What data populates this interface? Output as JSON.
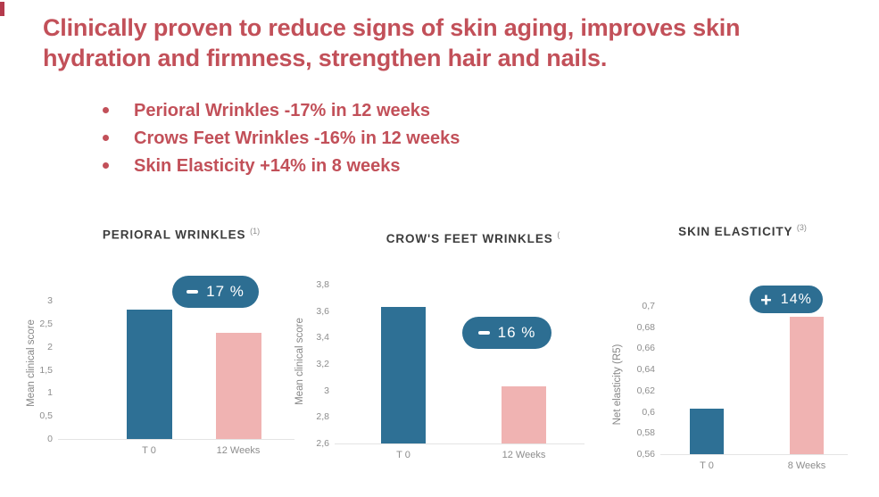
{
  "decor": {
    "corner_mark_color": "#b43a4c"
  },
  "colors": {
    "headline": "#c25059",
    "bar_t0": "#2e7095",
    "bar_followup": "#f0b3b2",
    "badge_bg": "#2d6e92",
    "badge_text": "#ffffff"
  },
  "header": {
    "title": "Clinically proven to reduce signs of skin aging, improves skin hydration and firmness, strengthen hair and nails."
  },
  "bullets": [
    "Perioral Wrinkles -17% in 12 weeks",
    "Crows Feet Wrinkles -16% in 12 weeks",
    "Skin Elasticity +14% in 8 weeks"
  ],
  "chart_data": [
    {
      "type": "bar",
      "title": "PERIORAL WRINKLES",
      "title_superscript": "(1)",
      "ylabel": "Mean clinical score",
      "categories": [
        "T 0",
        "12 Weeks"
      ],
      "values": [
        2.8,
        2.3
      ],
      "ylim": [
        0,
        3
      ],
      "ytick_labels": [
        "0",
        "0,5",
        "1",
        "1,5",
        "2",
        "2,5",
        "3"
      ],
      "badge": {
        "sign": "-",
        "value": "17 %"
      },
      "bar_colors": [
        "#2e7095",
        "#f0b3b2"
      ],
      "grid": false,
      "legend": false
    },
    {
      "type": "bar",
      "title": "CROW'S FEET WRINKLES",
      "title_superscript": "(",
      "ylabel": "Mean clinical score",
      "categories": [
        "T 0",
        "12 Weeks"
      ],
      "values": [
        3.63,
        3.03
      ],
      "ylim": [
        2.6,
        3.8
      ],
      "ytick_labels": [
        "2,6",
        "2,8",
        "3",
        "3,2",
        "3,4",
        "3,6",
        "3,8"
      ],
      "badge": {
        "sign": "-",
        "value": "16 %"
      },
      "bar_colors": [
        "#2e7095",
        "#f0b3b2"
      ],
      "grid": false,
      "legend": false
    },
    {
      "type": "bar",
      "title": "SKIN ELASTICITY",
      "title_superscript": "(3)",
      "ylabel": "Net elasticity (R5)",
      "categories": [
        "T 0",
        "8 Weeks"
      ],
      "values": [
        0.603,
        0.69
      ],
      "ylim": [
        0.56,
        0.7
      ],
      "ytick_labels": [
        "0,56",
        "0,58",
        "0,6",
        "0,62",
        "0,64",
        "0,66",
        "0,68",
        "0,7"
      ],
      "badge": {
        "sign": "+",
        "value": "14%"
      },
      "bar_colors": [
        "#2e7095",
        "#f0b3b2"
      ],
      "grid": false,
      "legend": false
    }
  ]
}
